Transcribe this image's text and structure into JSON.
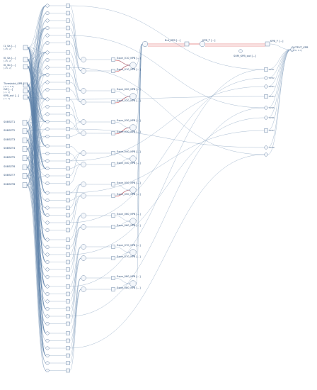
{
  "inputs": [
    {
      "label": "I1_Sa [...]",
      "sub": "[-25, 2]"
    },
    {
      "label": "I0_Sa [...]",
      "sub": "[-25, 2]"
    },
    {
      "label": "I0_Sb [...]",
      "sub": "[-25, 2]"
    },
    {
      "label": "Threshold_KPB [...]",
      "sub": "[-0.1, 0.1]"
    },
    {
      "label": "IVE [...]",
      "sub": "[-1, 1]"
    },
    {
      "label": "KPB_out [...]",
      "sub": "[-1, 1]"
    }
  ],
  "subsystems": [
    "SUBSET1",
    "SUBSET2",
    "SUBSET3",
    "SUBSET4",
    "SUBSET5",
    "SUBSET6",
    "SUBSET7",
    "SUBSET8"
  ],
  "mid_nodes": [
    "Expe_010_KPB [...]",
    "Expe_020_KPB [...]",
    "Expe_030_KPB [...]",
    "Expe_040_KPB [...]",
    "Expe_050_KPB [...]",
    "Expe_060_KPB [...]",
    "Expe_070_KPB [...]",
    "Expe_080_KPB [...]"
  ],
  "top_chain": [
    {
      "label": "Buf_KPB [...]"
    },
    {
      "label": "KPB_T [...]"
    },
    {
      "label": "KPB_Y [...]"
    }
  ],
  "top_aux": "SUM_KPB_out [...]",
  "output": {
    "label": "OUTPUT_KPB",
    "sub": "[-0.6, 0.7]"
  },
  "right_nodes": [
    "KPB1",
    "KPB2",
    "KPB3",
    "KPB4",
    "KPB5",
    "KPB6",
    "KPB7",
    "KPB8"
  ],
  "colors": {
    "wire": "#5b7fa6",
    "highlight": "#d94a4a",
    "node": "#4b6b92",
    "label": "#2e4f78"
  }
}
